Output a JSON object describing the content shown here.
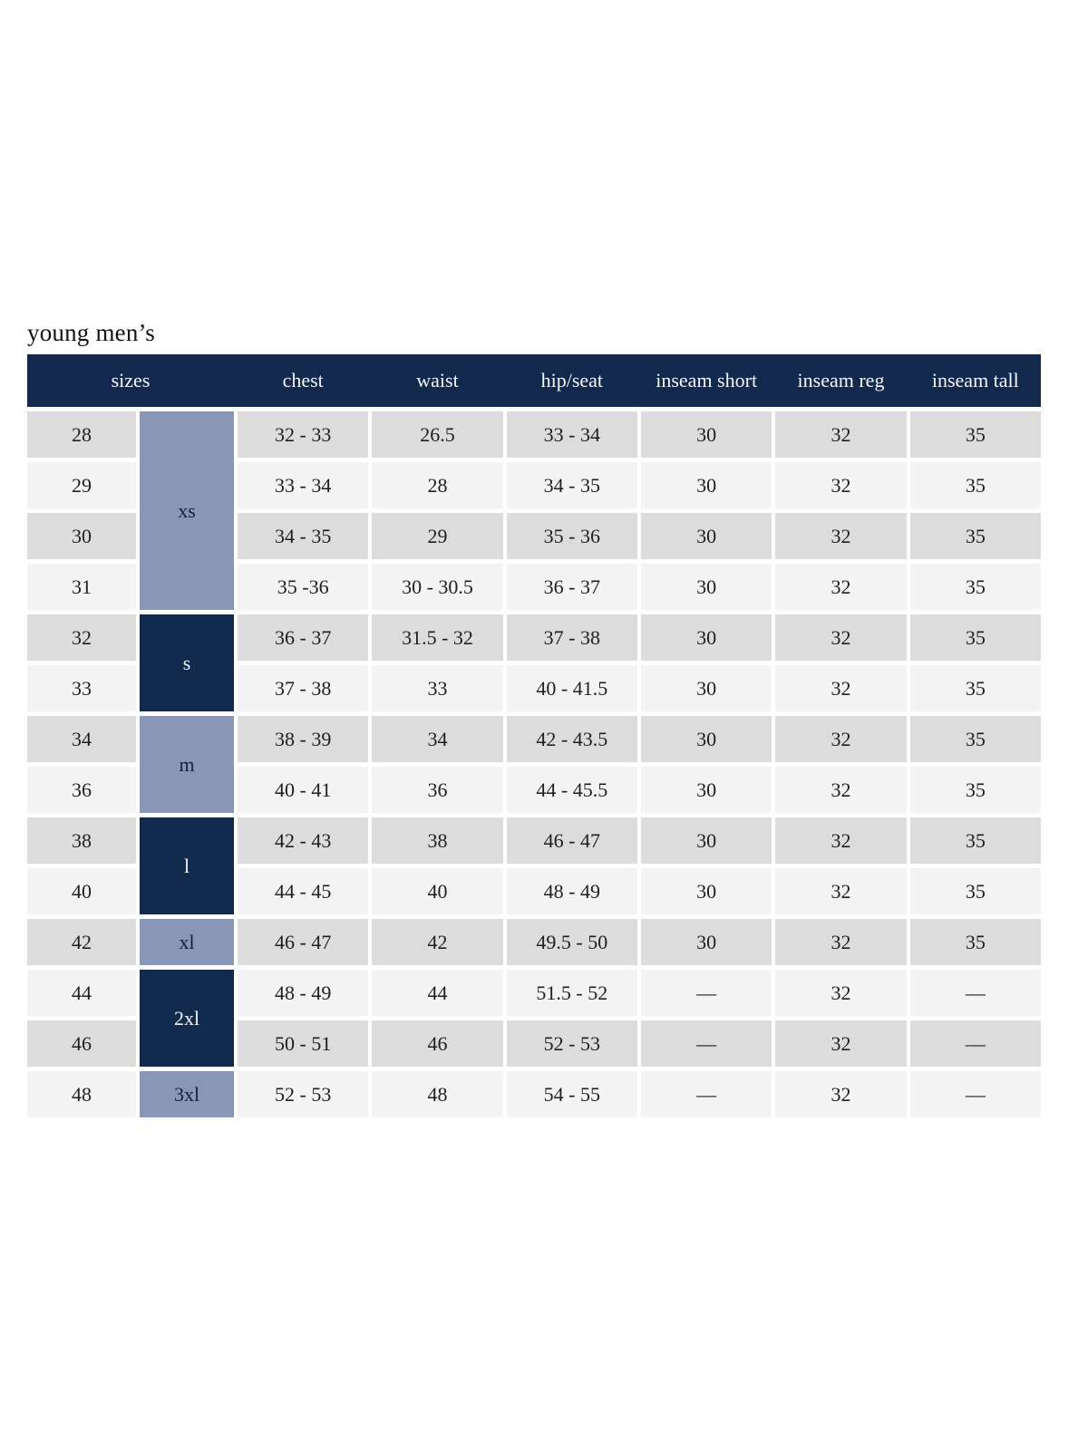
{
  "page": {
    "title": "young men’s"
  },
  "table": {
    "headers": [
      "sizes",
      "chest",
      "waist",
      "hip/seat",
      "inseam short",
      "inseam reg",
      "inseam tall"
    ],
    "size_groups": [
      {
        "label": "xs",
        "span": 4,
        "variant": "light"
      },
      {
        "label": "s",
        "span": 2,
        "variant": "dark"
      },
      {
        "label": "m",
        "span": 2,
        "variant": "light"
      },
      {
        "label": "l",
        "span": 2,
        "variant": "dark"
      },
      {
        "label": "xl",
        "span": 1,
        "variant": "light"
      },
      {
        "label": "2xl",
        "span": 2,
        "variant": "dark"
      },
      {
        "label": "3xl",
        "span": 1,
        "variant": "light"
      }
    ],
    "rows": [
      {
        "size": "28",
        "chest": "32 - 33",
        "waist": "26.5",
        "hip_seat": "33 - 34",
        "inseam_short": "30",
        "inseam_reg": "32",
        "inseam_tall": "35"
      },
      {
        "size": "29",
        "chest": "33 - 34",
        "waist": "28",
        "hip_seat": "34 - 35",
        "inseam_short": "30",
        "inseam_reg": "32",
        "inseam_tall": "35"
      },
      {
        "size": "30",
        "chest": "34 - 35",
        "waist": "29",
        "hip_seat": "35 - 36",
        "inseam_short": "30",
        "inseam_reg": "32",
        "inseam_tall": "35"
      },
      {
        "size": "31",
        "chest": "35 -36",
        "waist": "30 - 30.5",
        "hip_seat": "36 - 37",
        "inseam_short": "30",
        "inseam_reg": "32",
        "inseam_tall": "35"
      },
      {
        "size": "32",
        "chest": "36 - 37",
        "waist": "31.5 - 32",
        "hip_seat": "37 - 38",
        "inseam_short": "30",
        "inseam_reg": "32",
        "inseam_tall": "35"
      },
      {
        "size": "33",
        "chest": "37 - 38",
        "waist": "33",
        "hip_seat": "40 - 41.5",
        "inseam_short": "30",
        "inseam_reg": "32",
        "inseam_tall": "35"
      },
      {
        "size": "34",
        "chest": "38 - 39",
        "waist": "34",
        "hip_seat": "42 - 43.5",
        "inseam_short": "30",
        "inseam_reg": "32",
        "inseam_tall": "35"
      },
      {
        "size": "36",
        "chest": "40 - 41",
        "waist": "36",
        "hip_seat": "44 - 45.5",
        "inseam_short": "30",
        "inseam_reg": "32",
        "inseam_tall": "35"
      },
      {
        "size": "38",
        "chest": "42 - 43",
        "waist": "38",
        "hip_seat": "46 - 47",
        "inseam_short": "30",
        "inseam_reg": "32",
        "inseam_tall": "35"
      },
      {
        "size": "40",
        "chest": "44 - 45",
        "waist": "40",
        "hip_seat": "48 - 49",
        "inseam_short": "30",
        "inseam_reg": "32",
        "inseam_tall": "35"
      },
      {
        "size": "42",
        "chest": "46 - 47",
        "waist": "42",
        "hip_seat": "49.5 - 50",
        "inseam_short": "30",
        "inseam_reg": "32",
        "inseam_tall": "35"
      },
      {
        "size": "44",
        "chest": "48 - 49",
        "waist": "44",
        "hip_seat": "51.5 - 52",
        "inseam_short": "—",
        "inseam_reg": "32",
        "inseam_tall": "—"
      },
      {
        "size": "46",
        "chest": "50 - 51",
        "waist": "46",
        "hip_seat": "52 - 53",
        "inseam_short": "—",
        "inseam_reg": "32",
        "inseam_tall": "—"
      },
      {
        "size": "48",
        "chest": "52 - 53",
        "waist": "48",
        "hip_seat": "54 - 55",
        "inseam_short": "—",
        "inseam_reg": "32",
        "inseam_tall": "—"
      }
    ],
    "colors": {
      "header_bg": "#12294d",
      "header_text": "#f5f6f8",
      "group_light_bg": "#8996b4",
      "group_light_text": "#16213d",
      "group_dark_bg": "#122a4e",
      "group_dark_text": "#f5f6f8",
      "stripe_dark": "#dcdcdc",
      "stripe_light": "#f4f4f4",
      "cell_text": "#1f1f1f",
      "page_bg": "#ffffff"
    }
  }
}
